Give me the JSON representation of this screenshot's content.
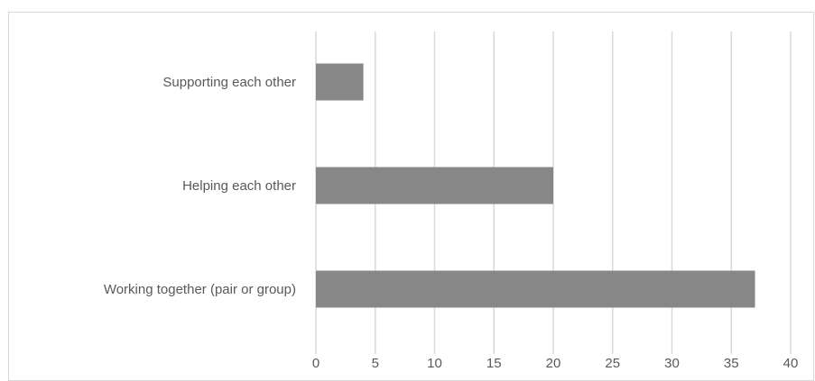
{
  "chart_data": {
    "type": "bar",
    "orientation": "horizontal",
    "categories": [
      "Supporting each other",
      "Helping each other",
      "Working together (pair or group)"
    ],
    "values": [
      4,
      20,
      37
    ],
    "xlim": [
      0,
      40
    ],
    "xticks": [
      "0",
      "5",
      "10",
      "15",
      "20",
      "25",
      "30",
      "35",
      "40"
    ],
    "grid": "vertical",
    "bar_color": "#878787",
    "grid_color": "#d9d9d9",
    "text_color": "#595959"
  }
}
